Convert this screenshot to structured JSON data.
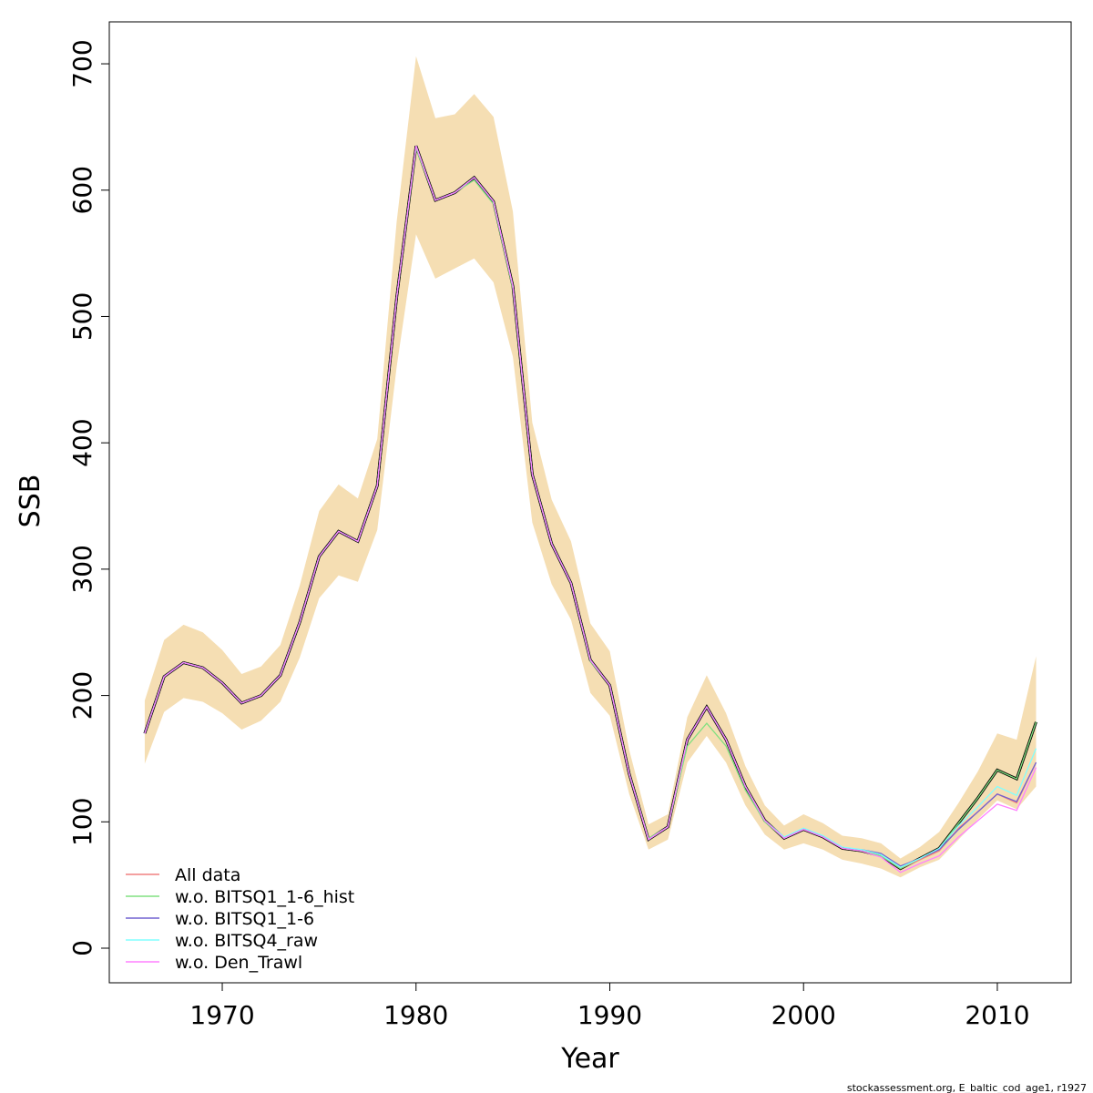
{
  "chart_data": {
    "type": "line",
    "x_label": "Year",
    "y_label": "SSB",
    "footer": "stockassessment.org, E_baltic_cod_age1, r1927",
    "x": [
      1966,
      1967,
      1968,
      1969,
      1970,
      1971,
      1972,
      1973,
      1974,
      1975,
      1976,
      1977,
      1978,
      1979,
      1980,
      1981,
      1982,
      1983,
      1984,
      1985,
      1986,
      1987,
      1988,
      1989,
      1990,
      1991,
      1992,
      1993,
      1994,
      1995,
      1996,
      1997,
      1998,
      1999,
      2000,
      2001,
      2002,
      2003,
      2004,
      2005,
      2006,
      2007,
      2008,
      2009,
      2010,
      2011,
      2012
    ],
    "values": [
      170,
      215,
      226,
      222,
      210,
      194,
      200,
      216,
      258,
      310,
      330,
      322,
      366,
      515,
      635,
      592,
      598,
      610,
      591,
      524,
      375,
      320,
      289,
      228,
      208,
      138,
      86,
      96,
      165,
      191,
      165,
      128,
      101,
      87,
      94,
      88,
      79,
      77,
      73,
      63,
      71,
      79,
      99,
      119,
      141,
      134,
      179
    ],
    "color": "#000000",
    "upper": [
      196,
      244,
      256,
      250,
      236,
      217,
      223,
      240,
      287,
      346,
      367,
      356,
      403,
      575,
      706,
      657,
      660,
      676,
      658,
      583,
      416,
      355,
      322,
      257,
      235,
      157,
      98,
      106,
      183,
      216,
      186,
      144,
      113,
      97,
      106,
      99,
      89,
      87,
      83,
      71,
      80,
      92,
      115,
      140,
      170,
      165,
      231
    ],
    "lower": [
      146,
      187,
      198,
      195,
      186,
      173,
      180,
      195,
      230,
      277,
      295,
      290,
      331,
      460,
      565,
      530,
      538,
      546,
      527,
      468,
      337,
      288,
      260,
      202,
      184,
      122,
      78,
      86,
      147,
      168,
      147,
      113,
      90,
      78,
      83,
      78,
      70,
      67,
      63,
      56,
      64,
      70,
      86,
      102,
      117,
      110,
      128
    ],
    "band_color": "#F5DEB3",
    "series": [
      {
        "name": "All data",
        "color": "#F08080",
        "values": [
          170,
          215,
          226,
          222,
          210,
          194,
          200,
          216,
          258,
          310,
          330,
          322,
          366,
          515,
          635,
          592,
          598,
          610,
          591,
          524,
          375,
          320,
          289,
          228,
          208,
          138,
          86,
          96,
          165,
          191,
          165,
          128,
          101,
          87,
          94,
          88,
          79,
          77,
          73,
          63,
          70,
          77,
          95,
          108,
          122,
          115,
          147
        ]
      },
      {
        "name": "w.o. BITSQ1_1-6_hist",
        "color": "#80E080",
        "values": [
          170,
          215,
          226,
          222,
          210,
          194,
          200,
          216,
          258,
          310,
          330,
          322,
          366,
          515,
          633,
          592,
          598,
          608,
          589,
          522,
          375,
          320,
          289,
          227,
          208,
          138,
          87,
          96,
          160,
          178,
          160,
          125,
          100,
          87,
          94,
          88,
          79,
          77,
          73,
          63,
          71,
          79,
          99,
          119,
          141,
          134,
          179
        ]
      },
      {
        "name": "w.o. BITSQ1_1-6",
        "color": "#7060D0",
        "values": [
          170,
          215,
          226,
          222,
          210,
          194,
          200,
          216,
          258,
          310,
          330,
          322,
          366,
          515,
          635,
          592,
          598,
          610,
          591,
          524,
          375,
          320,
          289,
          228,
          208,
          138,
          86,
          96,
          165,
          191,
          165,
          128,
          101,
          87,
          94,
          88,
          79,
          78,
          75,
          65,
          71,
          78,
          94,
          108,
          122,
          116,
          147
        ]
      },
      {
        "name": "w.o. BITSQ4_raw",
        "color": "#80FFFF",
        "values": [
          170,
          215,
          226,
          222,
          210,
          194,
          200,
          216,
          258,
          310,
          330,
          322,
          366,
          515,
          635,
          592,
          598,
          610,
          591,
          524,
          375,
          320,
          289,
          228,
          208,
          138,
          86,
          96,
          165,
          191,
          165,
          128,
          101,
          88,
          95,
          89,
          80,
          78,
          74,
          64,
          71,
          79,
          97,
          112,
          128,
          121,
          158
        ]
      },
      {
        "name": "w.o. Den_Trawl",
        "color": "#FF80FF",
        "values": [
          170,
          215,
          226,
          222,
          210,
          194,
          200,
          216,
          258,
          310,
          330,
          322,
          366,
          515,
          635,
          592,
          598,
          610,
          591,
          524,
          375,
          320,
          289,
          228,
          208,
          138,
          86,
          96,
          165,
          191,
          165,
          128,
          101,
          87,
          94,
          88,
          79,
          77,
          72,
          60,
          67,
          73,
          88,
          101,
          114,
          109,
          143
        ]
      }
    ],
    "xlim": [
      1964.17,
      2013.81
    ],
    "ylim": [
      -27.4,
      733.2
    ],
    "xticks": [
      1970,
      1980,
      1990,
      2000,
      2010
    ],
    "yticks": [
      0,
      100,
      200,
      300,
      400,
      500,
      600,
      700
    ],
    "legend": "bottom-left"
  }
}
